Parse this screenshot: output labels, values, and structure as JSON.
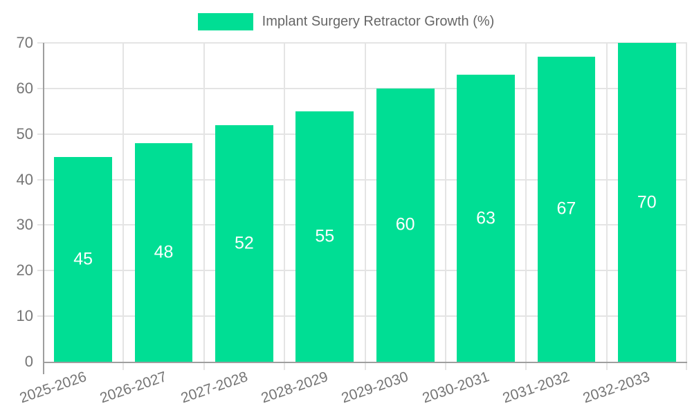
{
  "legend": {
    "label": "Implant Surgery Retractor Growth (%)",
    "swatch_color": "#00de94"
  },
  "chart_data": {
    "type": "bar",
    "title": "Implant Surgery Retractor Growth (%)",
    "series_name": "Implant Surgery Retractor Growth (%)",
    "categories": [
      "2025-2026",
      "2026-2027",
      "2027-2028",
      "2028-2029",
      "2029-2030",
      "2030-2031",
      "2031-2032",
      "2032-2033"
    ],
    "values": [
      45,
      48,
      52,
      55,
      60,
      63,
      67,
      70
    ],
    "value_labels": [
      "45",
      "48",
      "52",
      "55",
      "60",
      "63",
      "67",
      "70"
    ],
    "xlabel": "",
    "ylabel": "",
    "ylim": [
      0,
      70
    ],
    "yticks": [
      0,
      10,
      20,
      30,
      40,
      50,
      60,
      70
    ],
    "grid": true,
    "legend_position": "top",
    "x_tick_rotation_deg": -19,
    "bar_color": "#00de94",
    "value_label_color": "#ffffff"
  },
  "colors": {
    "bar": "#00de94",
    "grid": "#e4e4e4",
    "axis": "#9e9e9e",
    "tick_text": "#757575",
    "legend_text": "#666666",
    "background": "#ffffff"
  }
}
